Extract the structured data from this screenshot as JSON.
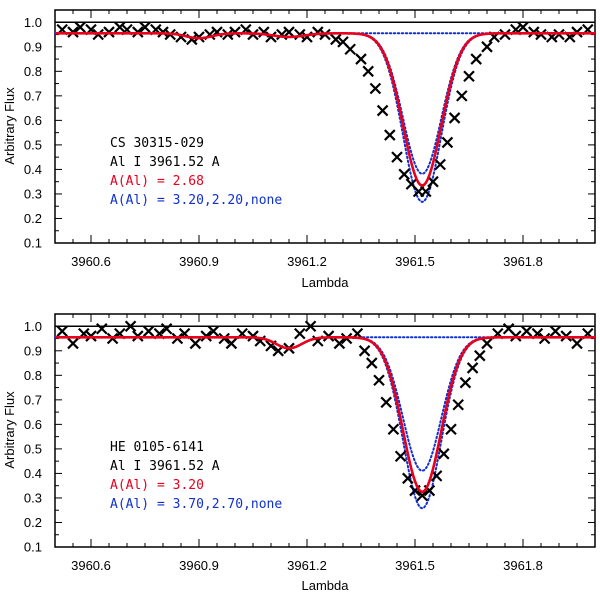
{
  "chart_data": [
    {
      "type": "line",
      "xlabel": "Lambda",
      "ylabel": "Arbitrary Flux",
      "xlim": [
        3960.5,
        3962.0
      ],
      "ylim": [
        0.1,
        1.05
      ],
      "xticks": [
        3960.6,
        3960.9,
        3961.2,
        3961.5,
        3961.8
      ],
      "xtick_labels": [
        "3960.6",
        "3960.9",
        "3961.2",
        "3961.5",
        "3961.8"
      ],
      "yticks": [
        0.1,
        0.2,
        0.3,
        0.4,
        0.5,
        0.6,
        0.7,
        0.8,
        0.9,
        1.0
      ],
      "ytick_labels": [
        "0.1",
        "0.2",
        "0.3",
        "0.4",
        "0.5",
        "0.6",
        "0.7",
        "0.8",
        "0.9",
        "1.0"
      ],
      "reference_line": 1.0,
      "annotations": {
        "star": "CS 30315-029",
        "line": "Al I 3961.52 A",
        "best": "A(Al) = 2.68",
        "alt": "A(Al) = 3.20,2.20,none"
      },
      "colors": {
        "best": "#e8001c",
        "alt": "#1030d0",
        "observed": "#000000"
      },
      "model": {
        "line_center": 3961.52,
        "continuum": 0.955,
        "line_width": 0.075,
        "best_depth": 0.65,
        "alt_depths": [
          0.72,
          0.6,
          0
        ],
        "weak_features": [
          {
            "center": 3960.9,
            "depth": 0.02,
            "width": 0.05
          },
          {
            "center": 3961.15,
            "depth": 0.015,
            "width": 0.06
          }
        ]
      },
      "series": [
        {
          "name": "observed",
          "style": "markers",
          "x": [
            3960.52,
            3960.55,
            3960.57,
            3960.6,
            3960.62,
            3960.65,
            3960.68,
            3960.7,
            3960.73,
            3960.75,
            3960.78,
            3960.8,
            3960.82,
            3960.85,
            3960.88,
            3960.9,
            3960.93,
            3960.95,
            3960.98,
            3961.0,
            3961.03,
            3961.05,
            3961.08,
            3961.1,
            3961.13,
            3961.15,
            3961.18,
            3961.2,
            3961.23,
            3961.25,
            3961.28,
            3961.3,
            3961.32,
            3961.35,
            3961.37,
            3961.39,
            3961.41,
            3961.43,
            3961.45,
            3961.47,
            3961.49,
            3961.51,
            3961.53,
            3961.55,
            3961.57,
            3961.59,
            3961.61,
            3961.63,
            3961.65,
            3961.67,
            3961.7,
            3961.72,
            3961.75,
            3961.78,
            3961.8,
            3961.83,
            3961.85,
            3961.88,
            3961.9,
            3961.93,
            3961.95,
            3961.98
          ],
          "y": [
            0.97,
            0.96,
            0.98,
            0.97,
            0.95,
            0.96,
            0.98,
            0.97,
            0.96,
            0.98,
            0.97,
            0.96,
            0.95,
            0.94,
            0.93,
            0.94,
            0.95,
            0.96,
            0.95,
            0.96,
            0.97,
            0.95,
            0.96,
            0.94,
            0.95,
            0.96,
            0.95,
            0.94,
            0.96,
            0.95,
            0.93,
            0.92,
            0.89,
            0.85,
            0.8,
            0.73,
            0.64,
            0.54,
            0.45,
            0.38,
            0.34,
            0.31,
            0.31,
            0.35,
            0.42,
            0.51,
            0.61,
            0.7,
            0.78,
            0.85,
            0.9,
            0.94,
            0.95,
            0.97,
            0.98,
            0.96,
            0.95,
            0.94,
            0.95,
            0.94,
            0.96,
            0.97
          ]
        },
        {
          "name": "A(Al) = 2.68",
          "style": "line"
        },
        {
          "name": "A(Al) = 3.20,2.20,none",
          "style": "dotted"
        }
      ]
    },
    {
      "type": "line",
      "xlabel": "Lambda",
      "ylabel": "Arbitrary Flux",
      "xlim": [
        3960.5,
        3962.0
      ],
      "ylim": [
        0.1,
        1.05
      ],
      "xticks": [
        3960.6,
        3960.9,
        3961.2,
        3961.5,
        3961.8
      ],
      "xtick_labels": [
        "3960.6",
        "3960.9",
        "3961.2",
        "3961.5",
        "3961.8"
      ],
      "yticks": [
        0.1,
        0.2,
        0.3,
        0.4,
        0.5,
        0.6,
        0.7,
        0.8,
        0.9,
        1.0
      ],
      "ytick_labels": [
        "0.1",
        "0.2",
        "0.3",
        "0.4",
        "0.5",
        "0.6",
        "0.7",
        "0.8",
        "0.9",
        "1.0"
      ],
      "reference_line": 1.0,
      "annotations": {
        "star": "HE 0105-6141",
        "line": "Al I 3961.52 A",
        "best": "A(Al) = 3.20",
        "alt": "A(Al) = 3.70,2.70,none"
      },
      "colors": {
        "best": "#e8001c",
        "alt": "#1030d0",
        "observed": "#000000"
      },
      "model": {
        "line_center": 3961.52,
        "continuum": 0.955,
        "line_width": 0.075,
        "best_depth": 0.66,
        "alt_depths": [
          0.73,
          0.57,
          0
        ],
        "weak_features": [
          {
            "center": 3961.15,
            "depth": 0.045,
            "width": 0.05
          }
        ]
      },
      "series": [
        {
          "name": "observed",
          "style": "markers",
          "x": [
            3960.52,
            3960.55,
            3960.58,
            3960.6,
            3960.63,
            3960.66,
            3960.68,
            3960.71,
            3960.73,
            3960.76,
            3960.79,
            3960.81,
            3960.84,
            3960.86,
            3960.89,
            3960.92,
            3960.94,
            3960.97,
            3960.99,
            3961.02,
            3961.05,
            3961.07,
            3961.1,
            3961.12,
            3961.15,
            3961.18,
            3961.21,
            3961.23,
            3961.26,
            3961.29,
            3961.31,
            3961.34,
            3961.36,
            3961.38,
            3961.4,
            3961.42,
            3961.44,
            3961.46,
            3961.48,
            3961.5,
            3961.52,
            3961.54,
            3961.56,
            3961.58,
            3961.6,
            3961.62,
            3961.64,
            3961.66,
            3961.68,
            3961.7,
            3961.73,
            3961.76,
            3961.78,
            3961.81,
            3961.84,
            3961.86,
            3961.89,
            3961.92,
            3961.95,
            3961.98
          ],
          "y": [
            0.98,
            0.93,
            0.97,
            0.96,
            0.99,
            0.95,
            0.97,
            1.0,
            0.96,
            0.98,
            0.97,
            0.99,
            0.95,
            0.97,
            0.93,
            0.96,
            0.98,
            0.95,
            0.93,
            0.97,
            0.96,
            0.94,
            0.92,
            0.9,
            0.91,
            0.97,
            1.0,
            0.94,
            0.96,
            0.93,
            0.95,
            0.97,
            0.9,
            0.85,
            0.78,
            0.69,
            0.58,
            0.47,
            0.38,
            0.33,
            0.31,
            0.33,
            0.39,
            0.48,
            0.58,
            0.68,
            0.77,
            0.83,
            0.88,
            0.93,
            0.97,
            0.99,
            0.96,
            0.98,
            0.97,
            0.95,
            0.98,
            0.96,
            0.93,
            0.97
          ]
        },
        {
          "name": "A(Al) = 3.20",
          "style": "line"
        },
        {
          "name": "A(Al) = 3.70,2.70,none",
          "style": "dotted"
        }
      ]
    }
  ]
}
